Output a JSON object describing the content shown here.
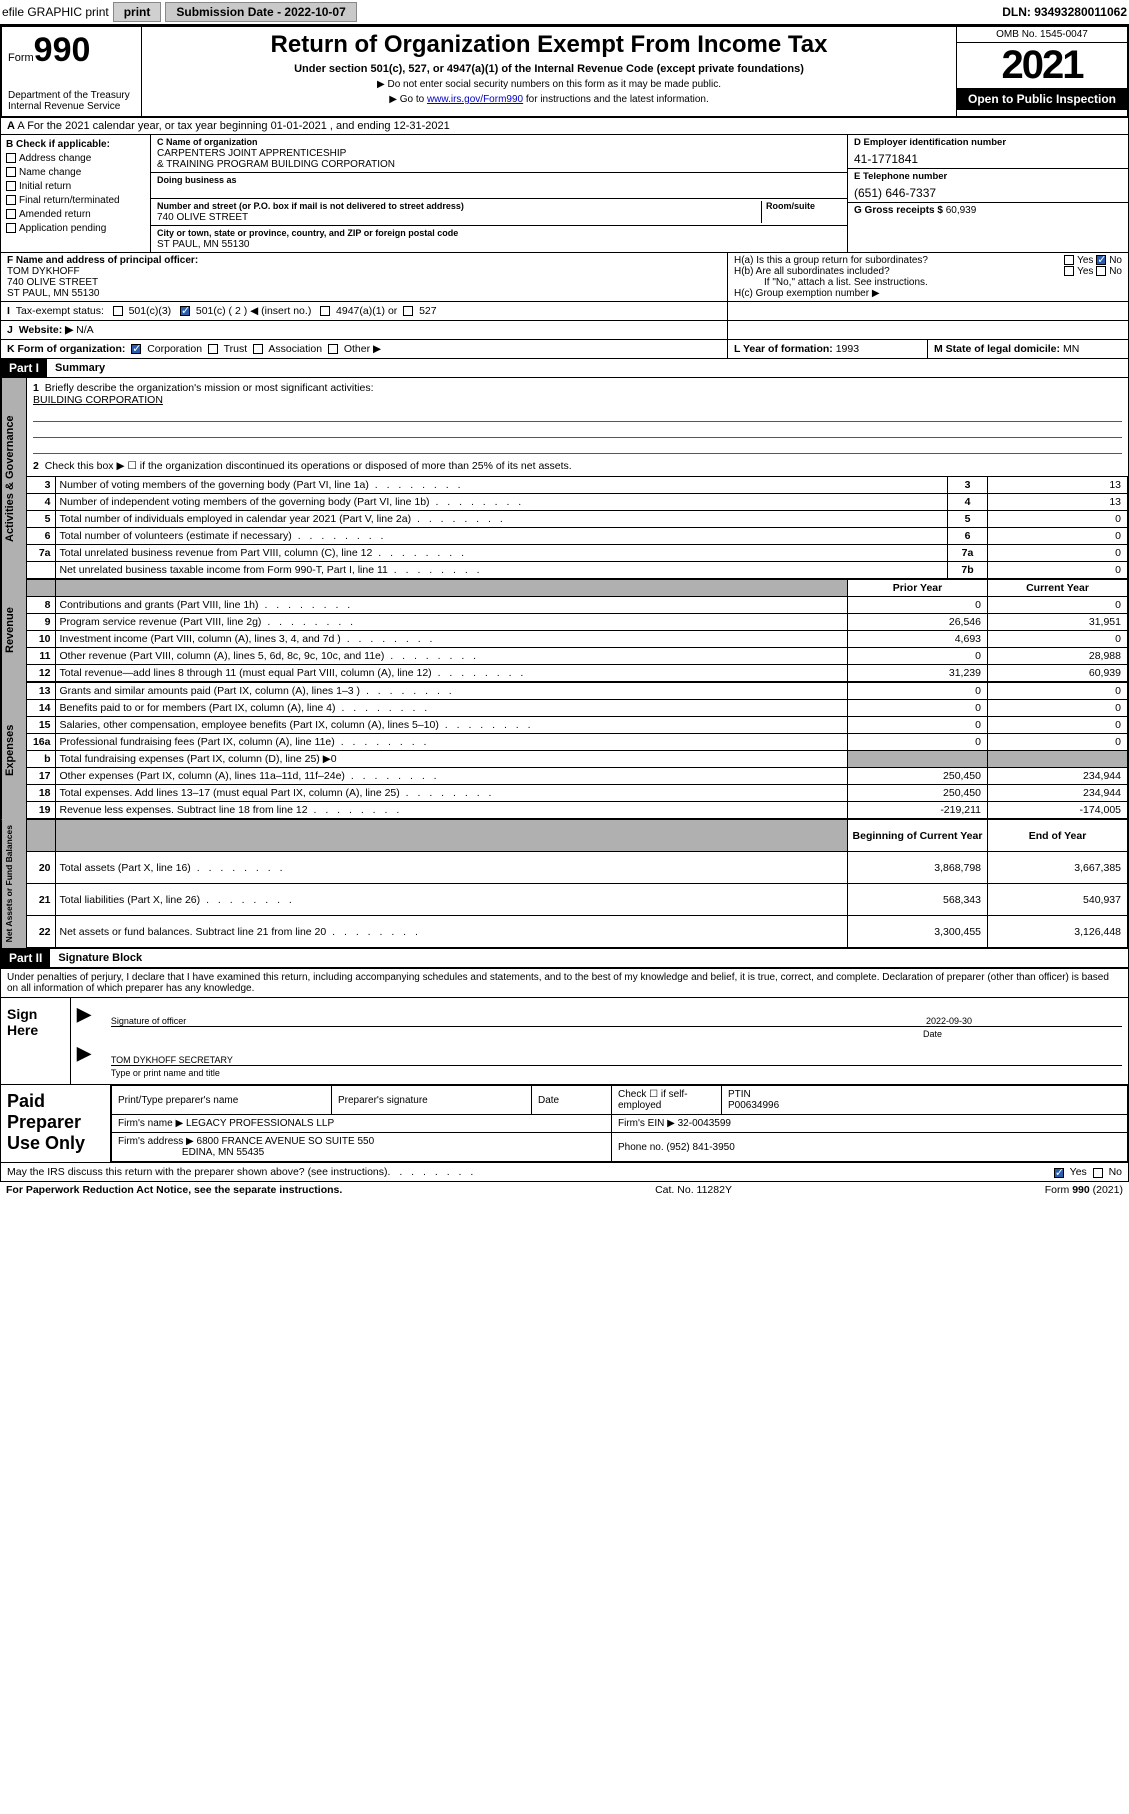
{
  "topbar": {
    "efile": "efile GRAPHIC print",
    "sub_label": "Submission Date - 2022-10-07",
    "dln": "DLN: 93493280011062"
  },
  "header": {
    "form_word": "Form",
    "form_num": "990",
    "dept": "Department of the Treasury",
    "irs": "Internal Revenue Service",
    "title": "Return of Organization Exempt From Income Tax",
    "subtitle": "Under section 501(c), 527, or 4947(a)(1) of the Internal Revenue Code (except private foundations)",
    "note1": "▶ Do not enter social security numbers on this form as it may be made public.",
    "note2_pre": "▶ Go to ",
    "note2_link": "www.irs.gov/Form990",
    "note2_post": " for instructions and the latest information.",
    "omb": "OMB No. 1545-0047",
    "year": "2021",
    "open": "Open to Public Inspection"
  },
  "rowA": "A For the 2021 calendar year, or tax year beginning 01-01-2021   , and ending 12-31-2021",
  "boxB": {
    "hdr": "B Check if applicable:",
    "opts": [
      "Address change",
      "Name change",
      "Initial return",
      "Final return/terminated",
      "Amended return",
      "Application pending"
    ]
  },
  "boxC": {
    "lbl_name": "C Name of organization",
    "org1": "CARPENTERS JOINT APPRENTICESHIP",
    "org2": "& TRAINING PROGRAM BUILDING CORPORATION",
    "dba_lbl": "Doing business as",
    "addr_lbl": "Number and street (or P.O. box if mail is not delivered to street address)",
    "room_lbl": "Room/suite",
    "addr": "740 OLIVE STREET",
    "city_lbl": "City or town, state or province, country, and ZIP or foreign postal code",
    "city": "ST PAUL, MN  55130"
  },
  "boxDE": {
    "d_lbl": "D Employer identification number",
    "d_val": "41-1771841",
    "e_lbl": "E Telephone number",
    "e_val": "(651) 646-7337",
    "g_lbl": "G Gross receipts $ ",
    "g_val": "60,939"
  },
  "boxF": {
    "lbl": "F Name and address of principal officer:",
    "l1": "TOM DYKHOFF",
    "l2": "740 OLIVE STREET",
    "l3": "ST PAUL, MN  55130"
  },
  "boxH": {
    "ha": "H(a)  Is this a group return for subordinates?",
    "hb": "H(b)  Are all subordinates included?",
    "hbn": "If \"No,\" attach a list. See instructions.",
    "hc": "H(c)  Group exemption number ▶",
    "yes": "Yes",
    "no": "No"
  },
  "rowI": {
    "lbl": "Tax-exempt status:",
    "o1": "501(c)(3)",
    "o2": "501(c) ( 2 ) ◀ (insert no.)",
    "o3": "4947(a)(1) or",
    "o4": "527"
  },
  "rowJ": {
    "lbl": "Website: ▶",
    "val": "N/A"
  },
  "rowK": {
    "lbl": "K Form of organization:",
    "o1": "Corporation",
    "o2": "Trust",
    "o3": "Association",
    "o4": "Other ▶"
  },
  "rowL": {
    "lbl": "L Year of formation: ",
    "val": "1993"
  },
  "rowM": {
    "lbl": "M State of legal domicile: ",
    "val": "MN"
  },
  "part1": {
    "hdr": "Part I",
    "title": "Summary",
    "q1": "Briefly describe the organization's mission or most significant activities:",
    "q1v": "BUILDING CORPORATION",
    "q2": "Check this box ▶ ☐  if the organization discontinued its operations or disposed of more than 25% of its net assets."
  },
  "gov": {
    "tab": "Activities & Governance",
    "rows": [
      {
        "n": "3",
        "d": "Number of voting members of the governing body (Part VI, line 1a)",
        "c": "3",
        "v": "13"
      },
      {
        "n": "4",
        "d": "Number of independent voting members of the governing body (Part VI, line 1b)",
        "c": "4",
        "v": "13"
      },
      {
        "n": "5",
        "d": "Total number of individuals employed in calendar year 2021 (Part V, line 2a)",
        "c": "5",
        "v": "0"
      },
      {
        "n": "6",
        "d": "Total number of volunteers (estimate if necessary)",
        "c": "6",
        "v": "0"
      },
      {
        "n": "7a",
        "d": "Total unrelated business revenue from Part VIII, column (C), line 12",
        "c": "7a",
        "v": "0"
      },
      {
        "n": "",
        "d": "Net unrelated business taxable income from Form 990-T, Part I, line 11",
        "c": "7b",
        "v": "0"
      }
    ]
  },
  "rev": {
    "tab": "Revenue",
    "hdr_prior": "Prior Year",
    "hdr_curr": "Current Year",
    "rows": [
      {
        "n": "8",
        "d": "Contributions and grants (Part VIII, line 1h)",
        "p": "0",
        "c": "0"
      },
      {
        "n": "9",
        "d": "Program service revenue (Part VIII, line 2g)",
        "p": "26,546",
        "c": "31,951"
      },
      {
        "n": "10",
        "d": "Investment income (Part VIII, column (A), lines 3, 4, and 7d )",
        "p": "4,693",
        "c": "0"
      },
      {
        "n": "11",
        "d": "Other revenue (Part VIII, column (A), lines 5, 6d, 8c, 9c, 10c, and 11e)",
        "p": "0",
        "c": "28,988"
      },
      {
        "n": "12",
        "d": "Total revenue—add lines 8 through 11 (must equal Part VIII, column (A), line 12)",
        "p": "31,239",
        "c": "60,939"
      }
    ]
  },
  "exp": {
    "tab": "Expenses",
    "rows": [
      {
        "n": "13",
        "d": "Grants and similar amounts paid (Part IX, column (A), lines 1–3 )",
        "p": "0",
        "c": "0"
      },
      {
        "n": "14",
        "d": "Benefits paid to or for members (Part IX, column (A), line 4)",
        "p": "0",
        "c": "0"
      },
      {
        "n": "15",
        "d": "Salaries, other compensation, employee benefits (Part IX, column (A), lines 5–10)",
        "p": "0",
        "c": "0"
      },
      {
        "n": "16a",
        "d": "Professional fundraising fees (Part IX, column (A), line 11e)",
        "p": "0",
        "c": "0"
      },
      {
        "n": "b",
        "d": "Total fundraising expenses (Part IX, column (D), line 25) ▶0",
        "p": "",
        "c": "",
        "grey": true
      },
      {
        "n": "17",
        "d": "Other expenses (Part IX, column (A), lines 11a–11d, 11f–24e)",
        "p": "250,450",
        "c": "234,944"
      },
      {
        "n": "18",
        "d": "Total expenses. Add lines 13–17 (must equal Part IX, column (A), line 25)",
        "p": "250,450",
        "c": "234,944"
      },
      {
        "n": "19",
        "d": "Revenue less expenses. Subtract line 18 from line 12",
        "p": "-219,211",
        "c": "-174,005"
      }
    ]
  },
  "net": {
    "tab": "Net Assets or Fund Balances",
    "hdr_beg": "Beginning of Current Year",
    "hdr_end": "End of Year",
    "rows": [
      {
        "n": "20",
        "d": "Total assets (Part X, line 16)",
        "p": "3,868,798",
        "c": "3,667,385"
      },
      {
        "n": "21",
        "d": "Total liabilities (Part X, line 26)",
        "p": "568,343",
        "c": "540,937"
      },
      {
        "n": "22",
        "d": "Net assets or fund balances. Subtract line 21 from line 20",
        "p": "3,300,455",
        "c": "3,126,448"
      }
    ]
  },
  "part2": {
    "hdr": "Part II",
    "title": "Signature Block",
    "penalty": "Under penalties of perjury, I declare that I have examined this return, including accompanying schedules and statements, and to the best of my knowledge and belief, it is true, correct, and complete. Declaration of preparer (other than officer) is based on all information of which preparer has any knowledge."
  },
  "sign": {
    "lbl": "Sign Here",
    "sig_lbl": "Signature of officer",
    "date_lbl": "Date",
    "date_val": "2022-09-30",
    "name": "TOM DYKHOFF SECRETARY",
    "name_lbl": "Type or print name and title"
  },
  "paid": {
    "lbl": "Paid Preparer Use Only",
    "c1": "Print/Type preparer's name",
    "c2": "Preparer's signature",
    "c3": "Date",
    "c4a": "Check ☐ if self-employed",
    "c4b": "PTIN",
    "ptin": "P00634996",
    "firm_lbl": "Firm's name   ▶",
    "firm": "LEGACY PROFESSIONALS LLP",
    "ein_lbl": "Firm's EIN ▶",
    "ein": "32-0043599",
    "addr_lbl": "Firm's address ▶",
    "addr1": "6800 FRANCE AVENUE SO SUITE 550",
    "addr2": "EDINA, MN  55435",
    "ph_lbl": "Phone no.",
    "ph": "(952) 841-3950"
  },
  "footer": {
    "q": "May the IRS discuss this return with the preparer shown above? (see instructions)",
    "yes": "Yes",
    "no": "No",
    "pra": "For Paperwork Reduction Act Notice, see the separate instructions.",
    "cat": "Cat. No. 11282Y",
    "form": "Form 990 (2021)"
  }
}
